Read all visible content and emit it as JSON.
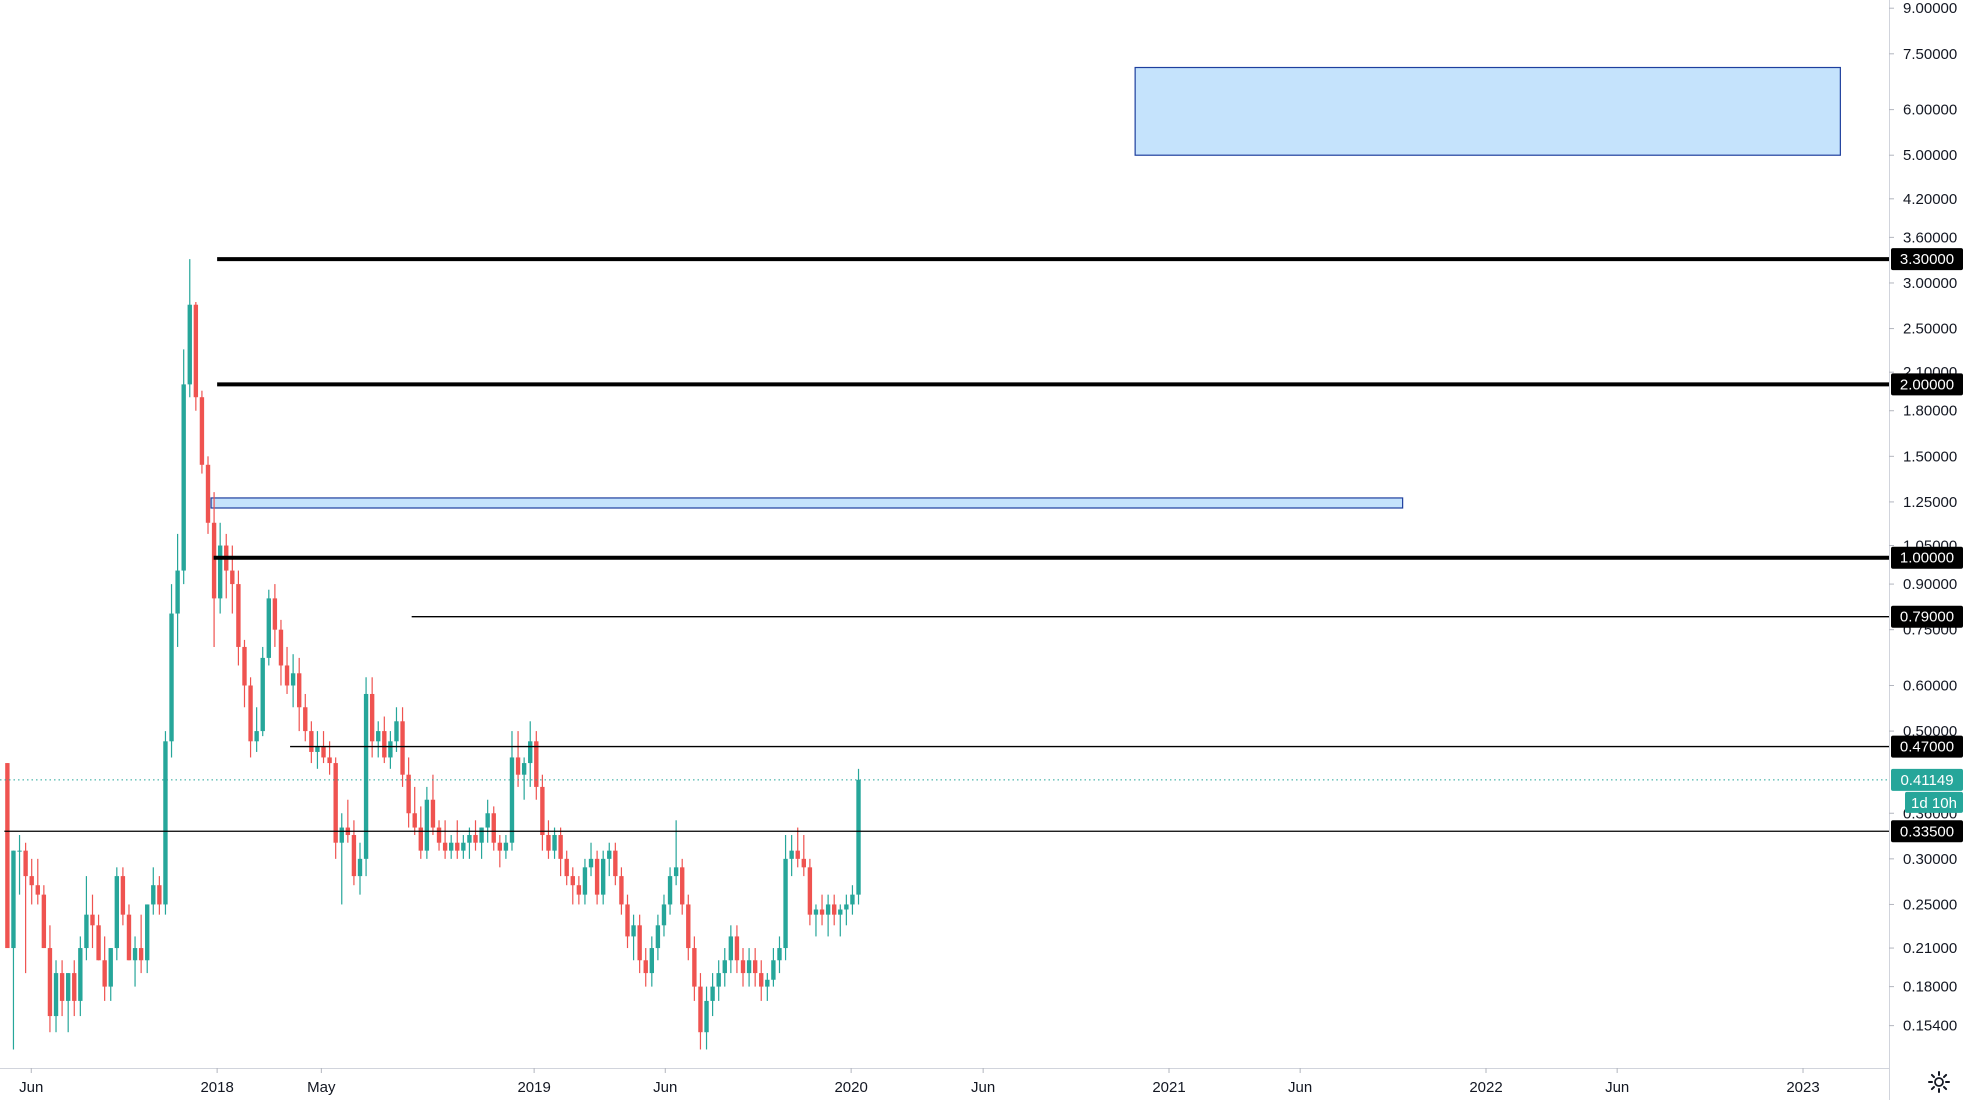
{
  "chart_data": {
    "type": "candlestick",
    "title": "",
    "xlabel": "",
    "ylabel": "",
    "y_scale": "log",
    "ylim": [
      0.13,
      9.3
    ],
    "x_range": [
      "2017-04-26",
      "2023-04-10"
    ],
    "y_ticks": [
      {
        "value": 9.0,
        "label": "9.00000"
      },
      {
        "value": 7.5,
        "label": "7.50000"
      },
      {
        "value": 6.0,
        "label": "6.00000"
      },
      {
        "value": 5.0,
        "label": "5.00000"
      },
      {
        "value": 4.2,
        "label": "4.20000"
      },
      {
        "value": 3.6,
        "label": "3.60000"
      },
      {
        "value": 3.0,
        "label": "3.00000"
      },
      {
        "value": 2.5,
        "label": "2.50000"
      },
      {
        "value": 2.1,
        "label": "2.10000"
      },
      {
        "value": 1.8,
        "label": "1.80000"
      },
      {
        "value": 1.5,
        "label": "1.50000"
      },
      {
        "value": 1.25,
        "label": "1.25000"
      },
      {
        "value": 1.05,
        "label": "1.05000"
      },
      {
        "value": 0.9,
        "label": "0.90000"
      },
      {
        "value": 0.75,
        "label": "0.75000"
      },
      {
        "value": 0.6,
        "label": "0.60000"
      },
      {
        "value": 0.5,
        "label": "0.50000"
      },
      {
        "value": 0.36,
        "label": "0.36000"
      },
      {
        "value": 0.3,
        "label": "0.30000"
      },
      {
        "value": 0.25,
        "label": "0.25000"
      },
      {
        "value": 0.21,
        "label": "0.21000"
      },
      {
        "value": 0.18,
        "label": "0.18000"
      },
      {
        "value": 0.154,
        "label": "0.15400"
      }
    ],
    "x_ticks": [
      {
        "date": "2017-06-01",
        "label": "Jun"
      },
      {
        "date": "2018-01-01",
        "label": "2018"
      },
      {
        "date": "2018-05-01",
        "label": "May"
      },
      {
        "date": "2019-01-01",
        "label": "2019"
      },
      {
        "date": "2019-06-01",
        "label": "Jun"
      },
      {
        "date": "2020-01-01",
        "label": "2020"
      },
      {
        "date": "2020-06-01",
        "label": "Jun"
      },
      {
        "date": "2021-01-01",
        "label": "2021"
      },
      {
        "date": "2021-06-01",
        "label": "Jun"
      },
      {
        "date": "2022-01-01",
        "label": "2022"
      },
      {
        "date": "2022-06-01",
        "label": "Jun"
      },
      {
        "date": "2023-01-01",
        "label": "2023"
      }
    ],
    "horizontal_levels": [
      {
        "value": 3.3,
        "label": "3.30000",
        "from": "2018-01-01",
        "style": "bold"
      },
      {
        "value": 2.0,
        "label": "2.00000",
        "from": "2018-01-01",
        "style": "bold"
      },
      {
        "value": 1.0,
        "label": "1.00000",
        "from": "2017-12-28",
        "style": "bold"
      },
      {
        "value": 0.79,
        "label": "0.79000",
        "from": "2018-08-13",
        "style": "thin"
      },
      {
        "value": 0.47,
        "label": "0.47000",
        "from": "2018-03-26",
        "style": "thin"
      },
      {
        "value": 0.335,
        "label": "0.33500",
        "from": "2017-05-01",
        "style": "thin"
      }
    ],
    "zones": [
      {
        "from": "2020-11-23",
        "to": "2023-02-13",
        "low": 5.0,
        "high": 7.1
      },
      {
        "from": "2017-12-25",
        "to": "2021-09-27",
        "low": 1.22,
        "high": 1.27
      }
    ],
    "last_price": {
      "value": 0.41149,
      "label": "0.41149",
      "countdown": "1d 10h"
    },
    "colors": {
      "up": "#26a69a",
      "down": "#ef5350",
      "zone_fill": "#bbdefb",
      "zone_border": "#1e3f9e",
      "level": "#000000",
      "last_price": "#26a69a"
    },
    "ohlc_weekly_2017_05_01": [
      [
        0.44,
        0.44,
        0.21,
        0.21
      ],
      [
        0.21,
        0.31,
        0.14,
        0.31
      ],
      [
        0.31,
        0.33,
        0.26,
        0.31
      ],
      [
        0.31,
        0.32,
        0.19,
        0.28
      ],
      [
        0.28,
        0.3,
        0.25,
        0.27
      ],
      [
        0.27,
        0.3,
        0.25,
        0.26
      ],
      [
        0.26,
        0.27,
        0.21,
        0.21
      ],
      [
        0.21,
        0.23,
        0.15,
        0.16
      ],
      [
        0.16,
        0.2,
        0.15,
        0.19
      ],
      [
        0.19,
        0.2,
        0.16,
        0.17
      ],
      [
        0.17,
        0.19,
        0.15,
        0.19
      ],
      [
        0.19,
        0.2,
        0.16,
        0.17
      ],
      [
        0.17,
        0.22,
        0.16,
        0.21
      ],
      [
        0.21,
        0.28,
        0.2,
        0.24
      ],
      [
        0.24,
        0.26,
        0.21,
        0.23
      ],
      [
        0.23,
        0.24,
        0.2,
        0.2
      ],
      [
        0.2,
        0.22,
        0.17,
        0.18
      ],
      [
        0.18,
        0.21,
        0.17,
        0.21
      ],
      [
        0.21,
        0.29,
        0.2,
        0.28
      ],
      [
        0.28,
        0.29,
        0.23,
        0.24
      ],
      [
        0.24,
        0.25,
        0.2,
        0.2
      ],
      [
        0.2,
        0.22,
        0.18,
        0.21
      ],
      [
        0.21,
        0.24,
        0.19,
        0.2
      ],
      [
        0.2,
        0.25,
        0.19,
        0.25
      ],
      [
        0.25,
        0.29,
        0.24,
        0.27
      ],
      [
        0.27,
        0.28,
        0.24,
        0.25
      ],
      [
        0.25,
        0.5,
        0.24,
        0.48
      ],
      [
        0.48,
        0.9,
        0.45,
        0.8
      ],
      [
        0.8,
        1.1,
        0.7,
        0.95
      ],
      [
        0.95,
        2.3,
        0.9,
        2.0
      ],
      [
        2.0,
        3.3,
        1.9,
        2.75
      ],
      [
        2.75,
        2.78,
        1.8,
        1.9
      ],
      [
        1.9,
        1.95,
        1.4,
        1.45
      ],
      [
        1.45,
        1.5,
        1.1,
        1.15
      ],
      [
        1.15,
        1.3,
        0.7,
        0.85
      ],
      [
        0.85,
        1.15,
        0.8,
        1.05
      ],
      [
        1.05,
        1.1,
        0.85,
        0.95
      ],
      [
        0.95,
        1.05,
        0.8,
        0.9
      ],
      [
        0.9,
        0.95,
        0.65,
        0.7
      ],
      [
        0.7,
        0.72,
        0.55,
        0.6
      ],
      [
        0.6,
        0.62,
        0.45,
        0.48
      ],
      [
        0.48,
        0.55,
        0.46,
        0.5
      ],
      [
        0.5,
        0.7,
        0.49,
        0.67
      ],
      [
        0.67,
        0.88,
        0.65,
        0.85
      ],
      [
        0.85,
        0.9,
        0.7,
        0.75
      ],
      [
        0.75,
        0.78,
        0.6,
        0.65
      ],
      [
        0.65,
        0.7,
        0.58,
        0.6
      ],
      [
        0.6,
        0.68,
        0.55,
        0.63
      ],
      [
        0.63,
        0.67,
        0.5,
        0.55
      ],
      [
        0.55,
        0.58,
        0.48,
        0.5
      ],
      [
        0.5,
        0.52,
        0.44,
        0.46
      ],
      [
        0.46,
        0.5,
        0.43,
        0.47
      ],
      [
        0.47,
        0.5,
        0.44,
        0.45
      ],
      [
        0.45,
        0.48,
        0.42,
        0.44
      ],
      [
        0.44,
        0.45,
        0.3,
        0.32
      ],
      [
        0.32,
        0.36,
        0.25,
        0.34
      ],
      [
        0.34,
        0.38,
        0.32,
        0.33
      ],
      [
        0.33,
        0.35,
        0.27,
        0.28
      ],
      [
        0.28,
        0.32,
        0.26,
        0.3
      ],
      [
        0.3,
        0.62,
        0.28,
        0.58
      ],
      [
        0.58,
        0.62,
        0.45,
        0.48
      ],
      [
        0.48,
        0.52,
        0.45,
        0.5
      ],
      [
        0.5,
        0.53,
        0.44,
        0.45
      ],
      [
        0.45,
        0.5,
        0.43,
        0.48
      ],
      [
        0.48,
        0.55,
        0.46,
        0.52
      ],
      [
        0.52,
        0.55,
        0.4,
        0.42
      ],
      [
        0.42,
        0.45,
        0.34,
        0.36
      ],
      [
        0.36,
        0.4,
        0.33,
        0.34
      ],
      [
        0.34,
        0.37,
        0.3,
        0.31
      ],
      [
        0.31,
        0.4,
        0.3,
        0.38
      ],
      [
        0.38,
        0.42,
        0.33,
        0.34
      ],
      [
        0.34,
        0.35,
        0.31,
        0.32
      ],
      [
        0.32,
        0.35,
        0.3,
        0.31
      ],
      [
        0.31,
        0.33,
        0.3,
        0.32
      ],
      [
        0.32,
        0.35,
        0.3,
        0.31
      ],
      [
        0.31,
        0.33,
        0.3,
        0.32
      ],
      [
        0.32,
        0.34,
        0.3,
        0.33
      ],
      [
        0.33,
        0.35,
        0.31,
        0.32
      ],
      [
        0.32,
        0.34,
        0.3,
        0.34
      ],
      [
        0.34,
        0.38,
        0.32,
        0.36
      ],
      [
        0.36,
        0.37,
        0.31,
        0.32
      ],
      [
        0.32,
        0.33,
        0.29,
        0.31
      ],
      [
        0.31,
        0.33,
        0.3,
        0.32
      ],
      [
        0.32,
        0.5,
        0.31,
        0.45
      ],
      [
        0.45,
        0.5,
        0.4,
        0.42
      ],
      [
        0.42,
        0.45,
        0.38,
        0.44
      ],
      [
        0.44,
        0.52,
        0.4,
        0.48
      ],
      [
        0.48,
        0.5,
        0.38,
        0.4
      ],
      [
        0.4,
        0.42,
        0.31,
        0.33
      ],
      [
        0.33,
        0.35,
        0.3,
        0.31
      ],
      [
        0.31,
        0.34,
        0.3,
        0.33
      ],
      [
        0.33,
        0.34,
        0.28,
        0.3
      ],
      [
        0.3,
        0.31,
        0.27,
        0.28
      ],
      [
        0.28,
        0.29,
        0.25,
        0.27
      ],
      [
        0.27,
        0.28,
        0.25,
        0.26
      ],
      [
        0.26,
        0.3,
        0.25,
        0.29
      ],
      [
        0.29,
        0.32,
        0.28,
        0.3
      ],
      [
        0.3,
        0.31,
        0.25,
        0.26
      ],
      [
        0.26,
        0.31,
        0.25,
        0.3
      ],
      [
        0.3,
        0.32,
        0.28,
        0.31
      ],
      [
        0.31,
        0.32,
        0.27,
        0.28
      ],
      [
        0.28,
        0.29,
        0.24,
        0.25
      ],
      [
        0.25,
        0.26,
        0.21,
        0.22
      ],
      [
        0.22,
        0.24,
        0.2,
        0.23
      ],
      [
        0.23,
        0.24,
        0.19,
        0.2
      ],
      [
        0.2,
        0.21,
        0.18,
        0.19
      ],
      [
        0.19,
        0.22,
        0.18,
        0.21
      ],
      [
        0.21,
        0.24,
        0.2,
        0.23
      ],
      [
        0.23,
        0.26,
        0.22,
        0.25
      ],
      [
        0.25,
        0.29,
        0.24,
        0.28
      ],
      [
        0.28,
        0.35,
        0.27,
        0.29
      ],
      [
        0.29,
        0.3,
        0.24,
        0.25
      ],
      [
        0.25,
        0.26,
        0.2,
        0.21
      ],
      [
        0.21,
        0.22,
        0.17,
        0.18
      ],
      [
        0.18,
        0.19,
        0.14,
        0.15
      ],
      [
        0.15,
        0.18,
        0.14,
        0.17
      ],
      [
        0.17,
        0.19,
        0.16,
        0.18
      ],
      [
        0.18,
        0.2,
        0.17,
        0.19
      ],
      [
        0.19,
        0.21,
        0.18,
        0.2
      ],
      [
        0.2,
        0.23,
        0.19,
        0.22
      ],
      [
        0.22,
        0.23,
        0.19,
        0.2
      ],
      [
        0.2,
        0.21,
        0.18,
        0.19
      ],
      [
        0.19,
        0.21,
        0.18,
        0.2
      ],
      [
        0.2,
        0.21,
        0.18,
        0.19
      ],
      [
        0.19,
        0.2,
        0.17,
        0.18
      ],
      [
        0.18,
        0.19,
        0.17,
        0.185
      ],
      [
        0.185,
        0.21,
        0.18,
        0.2
      ],
      [
        0.2,
        0.22,
        0.19,
        0.21
      ],
      [
        0.21,
        0.33,
        0.2,
        0.3
      ],
      [
        0.3,
        0.33,
        0.28,
        0.31
      ],
      [
        0.31,
        0.34,
        0.29,
        0.3
      ],
      [
        0.3,
        0.33,
        0.28,
        0.29
      ],
      [
        0.29,
        0.3,
        0.23,
        0.24
      ],
      [
        0.24,
        0.25,
        0.22,
        0.245
      ],
      [
        0.245,
        0.26,
        0.23,
        0.24
      ],
      [
        0.24,
        0.26,
        0.22,
        0.25
      ],
      [
        0.25,
        0.26,
        0.23,
        0.24
      ],
      [
        0.24,
        0.25,
        0.22,
        0.245
      ],
      [
        0.245,
        0.26,
        0.23,
        0.25
      ],
      [
        0.25,
        0.27,
        0.24,
        0.26
      ],
      [
        0.26,
        0.43,
        0.25,
        0.41149
      ]
    ]
  }
}
